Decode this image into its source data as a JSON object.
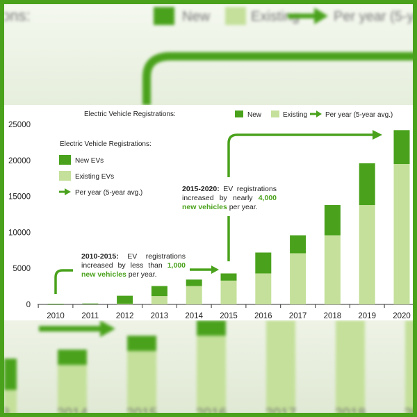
{
  "colors": {
    "new": "#4aa21c",
    "existing": "#c4e09a",
    "arrow": "#4aa21c",
    "frame": "#4aa21c",
    "axis": "#333333"
  },
  "legend_top": {
    "title": "Electric Vehicle Registrations:",
    "new": "New",
    "existing": "Existing",
    "per_year": "Per year (5-year avg.)"
  },
  "legend_inner": {
    "title": "Electric Vehicle Registrations:",
    "new": "New EVs",
    "existing": "Existing EVs",
    "per_year": "Per year (5-year avg.)"
  },
  "annotation_2010": {
    "period": "2010-2015:",
    "text_a": " EV registrations increased by less than ",
    "highlight": "1,000 new vehicles",
    "text_b": " per year."
  },
  "annotation_2015": {
    "period": "2015-2020:",
    "text_a": " EV registrations increased by nearly ",
    "highlight": "4,000 new vehicles",
    "text_b": " per year."
  },
  "background_top": {
    "fragment": "ons:",
    "new": "New",
    "existing": "Existing",
    "per_year": "Per year (5-ye"
  },
  "background_bottom": {
    "years": [
      "3",
      "2014",
      "2015",
      "2016",
      "2017",
      "2018",
      "201"
    ]
  },
  "chart_data": {
    "type": "bar",
    "stacked": true,
    "categories": [
      "2010",
      "2011",
      "2012",
      "2013",
      "2014",
      "2015",
      "2016",
      "2017",
      "2018",
      "2019",
      "2020"
    ],
    "series": [
      {
        "name": "Existing",
        "values": [
          0,
          30,
          100,
          1150,
          2550,
          3300,
          4300,
          7100,
          9600,
          13800,
          19500
        ]
      },
      {
        "name": "New",
        "values": [
          30,
          70,
          1100,
          1400,
          900,
          1000,
          2900,
          2500,
          4200,
          5800,
          4700
        ]
      }
    ],
    "y_ticks": [
      "0",
      "5000",
      "10000",
      "15000",
      "20000",
      "25000"
    ],
    "ylim": [
      0,
      25000
    ],
    "grid": false
  }
}
